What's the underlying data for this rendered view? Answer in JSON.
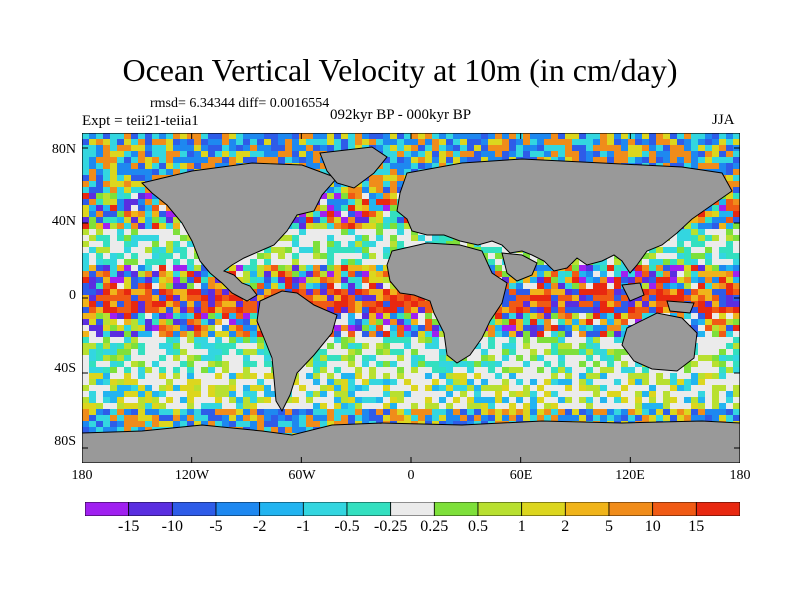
{
  "map": {
    "title": "Ocean Vertical Velocity at 10m (in cm/day)",
    "stats": "rmsd= 6.34344 diff= 0.0016554",
    "period": "092kyr BP - 000kyr BP",
    "experiment": "Expt = teii21-teiia1",
    "season": "JJA",
    "land_color": "#999999",
    "lat_labels": [
      "80N",
      "40N",
      "0",
      "40S",
      "80S"
    ],
    "lon_labels": [
      "180",
      "120W",
      "60W",
      "0",
      "60E",
      "120E",
      "180"
    ]
  },
  "colorbar": {
    "labels": [
      "-15",
      "-10",
      "-5",
      "-2",
      "-1",
      "-0.5",
      "-0.25",
      "0.25",
      "0.5",
      "1",
      "2",
      "5",
      "10",
      "15"
    ],
    "colors": [
      "#a020f0",
      "#5a2ee0",
      "#2e5ce8",
      "#1e88f0",
      "#22b4f0",
      "#33d6e0",
      "#33e0c0",
      "#ebebeb",
      "#7ee03a",
      "#b8e030",
      "#dcd61e",
      "#f0b41a",
      "#f08c1a",
      "#f05a14",
      "#e82810"
    ]
  }
}
